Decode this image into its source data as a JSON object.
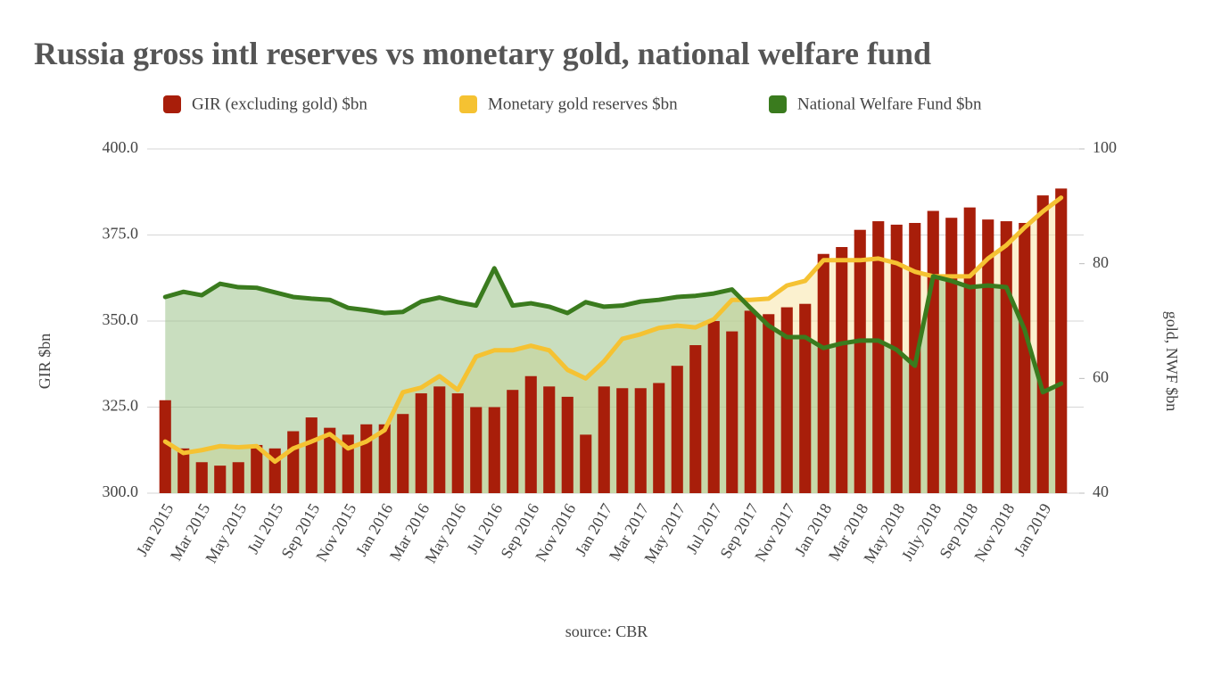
{
  "chart_data": {
    "type": "combo",
    "title": "Russia gross intl reserves vs monetary gold, national welfare fund",
    "source": "source: CBR",
    "y_label": "GIR $bn",
    "y2_label": "gold, NWF $bn",
    "categories": [
      "Jan 2015",
      null,
      "Mar 2015",
      null,
      "May 2015",
      null,
      "Jul 2015",
      null,
      "Sep 2015",
      null,
      "Nov 2015",
      null,
      "Jan 2016",
      null,
      "Mar 2016",
      null,
      "May 2016",
      null,
      "Jul 2016",
      null,
      "Sep 2016",
      null,
      "Nov 2016",
      null,
      "Jan 2017",
      null,
      "Mar 2017",
      null,
      "May 2017",
      null,
      "Jul 2017",
      null,
      "Sep 2017",
      null,
      "Nov 2017",
      null,
      "Jan 2018",
      null,
      "Mar 2018",
      null,
      "May 2018",
      null,
      "July 2018",
      null,
      "Sep 2018",
      null,
      "Nov 2018",
      null,
      "Jan 2019",
      null
    ],
    "series": [
      {
        "name": "GIR (excluding gold) $bn",
        "type": "bar",
        "color": "#a81e0a",
        "values": [
          327,
          313,
          309,
          308,
          309,
          314,
          313,
          318,
          322,
          319,
          317,
          320,
          320,
          323,
          329,
          331,
          329,
          325,
          325,
          330,
          334,
          331,
          328,
          317,
          331,
          330.5,
          330.5,
          332,
          337,
          343,
          350,
          347,
          353,
          352,
          354,
          355,
          369.5,
          371.5,
          376.5,
          379,
          378,
          378.5,
          382,
          380,
          383,
          379.5,
          379,
          378.5,
          386.5,
          388.5
        ]
      },
      {
        "name": "Monetary gold reserves $bn",
        "type": "area",
        "axis": "y2",
        "color": "#f5c232",
        "fill": "#f7e6a8",
        "values": [
          49,
          47,
          47.5,
          48.2,
          48,
          48.2,
          45.5,
          47.8,
          49,
          50.3,
          47.8,
          49,
          51,
          57.6,
          58.4,
          60.4,
          58,
          63.8,
          64.9,
          64.9,
          65.7,
          64.9,
          61.5,
          60,
          63,
          66.9,
          67.7,
          68.8,
          69.2,
          68.9,
          70.3,
          73.7,
          73.7,
          73.9,
          76.2,
          77,
          80.6,
          80.6,
          80.6,
          80.9,
          80.1,
          78.6,
          77.8,
          77.8,
          77.8,
          80.9,
          83.2,
          86.3,
          89.1,
          91.5
        ]
      },
      {
        "name": "National Welfare Fund $bn",
        "type": "area",
        "axis": "y2",
        "color": "#3a7b1e",
        "fill": "#9cc38a",
        "values": [
          74.2,
          75.1,
          74.5,
          76.5,
          75.9,
          75.8,
          75,
          74.2,
          73.9,
          73.7,
          72.3,
          71.9,
          71.4,
          71.6,
          73.4,
          74.1,
          73.3,
          72.7,
          79.2,
          72.7,
          73.1,
          72.5,
          71.4,
          73.3,
          72.5,
          72.7,
          73.4,
          73.7,
          74.2,
          74.4,
          74.8,
          75.5,
          72.3,
          69.2,
          67.2,
          67.2,
          65.3,
          66.1,
          66.6,
          66.6,
          65,
          62.2,
          77.8,
          77,
          75.9,
          76.2,
          75.9,
          68.5,
          57.6,
          59.1
        ]
      }
    ],
    "ylim": [
      300,
      400
    ],
    "yticks": [
      {
        "value": 300,
        "label": "300.0"
      },
      {
        "value": 325,
        "label": "325.0"
      },
      {
        "value": 350,
        "label": "350.0"
      },
      {
        "value": 375,
        "label": "375.0"
      },
      {
        "value": 400,
        "label": "400.0"
      }
    ],
    "y2lim": [
      40,
      100
    ],
    "y2ticks": [
      40,
      60,
      80,
      100
    ],
    "grid": true
  }
}
